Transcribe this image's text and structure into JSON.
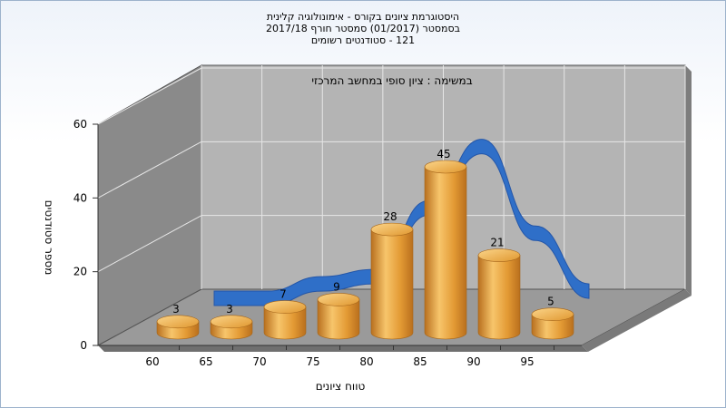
{
  "chart_data": {
    "type": "bar",
    "title_lines": [
      "היסטוגרמת ציונים בקורס - אימונולוגיה קלינית",
      "בסמסטר  (01/2017)  סמסטר חורף 2017/18",
      "121 - סטודנטים רשומים"
    ],
    "subtitle": "במשימה : ציון סופי במחשב המרכזי",
    "xlabel": "טווח ציונים",
    "ylabel": "מספר סטודנטים",
    "x_ticks": [
      "60",
      "65",
      "70",
      "75",
      "80",
      "85",
      "90",
      "95"
    ],
    "y_ticks": [
      "0",
      "20",
      "40",
      "60"
    ],
    "ylim": [
      0,
      60
    ],
    "categories": [
      "60",
      "65",
      "70",
      "75",
      "80",
      "85",
      "90",
      "95"
    ],
    "values": [
      3,
      3,
      7,
      9,
      28,
      45,
      21,
      5
    ],
    "value_labels": [
      "3",
      "3",
      "7",
      "9",
      "28",
      "45",
      "21",
      "5"
    ],
    "bar_color": "#e8a23a",
    "curve_color": "#2f6fc8",
    "wall_color": "#b4b4b4",
    "side_wall_color": "#8a8a8a"
  }
}
